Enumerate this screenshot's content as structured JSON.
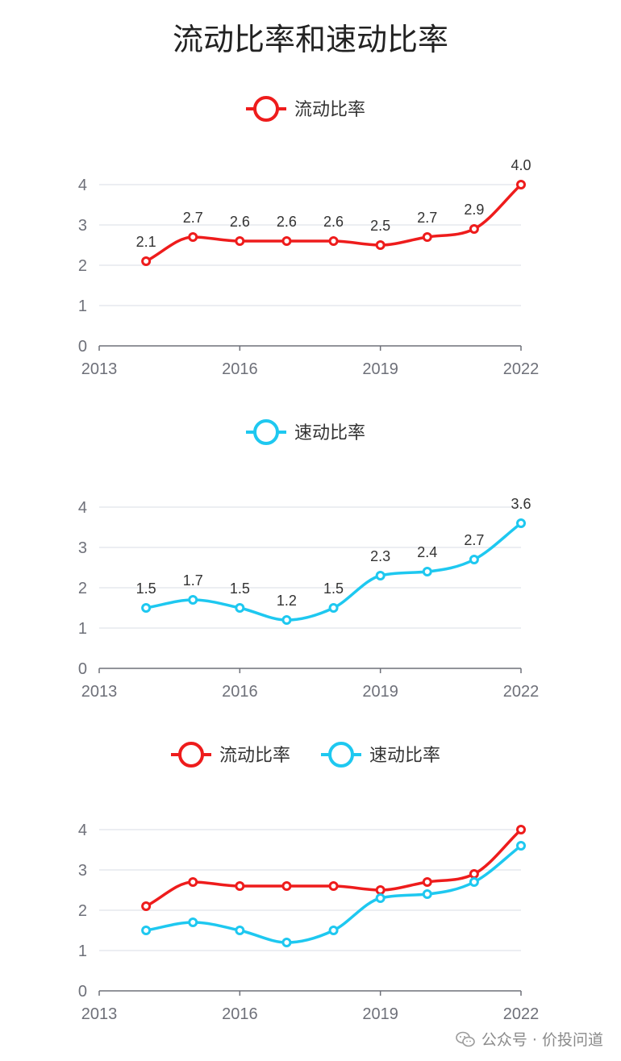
{
  "title": "流动比率和速动比率",
  "watermark": "公众号 · 价投问道",
  "colors": {
    "current": "#ee1c1c",
    "quick": "#1ec8f0",
    "grid": "#e0e3ea",
    "axis": "#6e7079"
  },
  "chart_data": [
    {
      "type": "line",
      "legend": [
        "流动比率"
      ],
      "x_ticks": [
        "2013",
        "2016",
        "2019",
        "2022"
      ],
      "y_ticks": [
        "0",
        "1",
        "2",
        "3",
        "4"
      ],
      "xlim": [
        2013,
        2022
      ],
      "ylim": [
        0,
        4
      ],
      "x": [
        2014,
        2015,
        2016,
        2017,
        2018,
        2019,
        2020,
        2021,
        2022
      ],
      "series": [
        {
          "name": "流动比率",
          "color": "#ee1c1c",
          "values": [
            2.1,
            2.7,
            2.6,
            2.6,
            2.6,
            2.5,
            2.7,
            2.9,
            4.0
          ],
          "labels": [
            "2.1",
            "2.7",
            "2.6",
            "2.6",
            "2.6",
            "2.5",
            "2.7",
            "2.9",
            "4.0"
          ]
        }
      ]
    },
    {
      "type": "line",
      "legend": [
        "速动比率"
      ],
      "x_ticks": [
        "2013",
        "2016",
        "2019",
        "2022"
      ],
      "y_ticks": [
        "0",
        "1",
        "2",
        "3",
        "4"
      ],
      "xlim": [
        2013,
        2022
      ],
      "ylim": [
        0,
        4
      ],
      "x": [
        2014,
        2015,
        2016,
        2017,
        2018,
        2019,
        2020,
        2021,
        2022
      ],
      "series": [
        {
          "name": "速动比率",
          "color": "#1ec8f0",
          "values": [
            1.5,
            1.7,
            1.5,
            1.2,
            1.5,
            2.3,
            2.4,
            2.7,
            3.6
          ],
          "labels": [
            "1.5",
            "1.7",
            "1.5",
            "1.2",
            "1.5",
            "2.3",
            "2.4",
            "2.7",
            "3.6"
          ]
        }
      ]
    },
    {
      "type": "line",
      "legend": [
        "流动比率",
        "速动比率"
      ],
      "x_ticks": [
        "2013",
        "2016",
        "2019",
        "2022"
      ],
      "y_ticks": [
        "0",
        "1",
        "2",
        "3",
        "4"
      ],
      "xlim": [
        2013,
        2022
      ],
      "ylim": [
        0,
        4
      ],
      "x": [
        2014,
        2015,
        2016,
        2017,
        2018,
        2019,
        2020,
        2021,
        2022
      ],
      "series": [
        {
          "name": "流动比率",
          "color": "#ee1c1c",
          "values": [
            2.1,
            2.7,
            2.6,
            2.6,
            2.6,
            2.5,
            2.7,
            2.9,
            4.0
          ]
        },
        {
          "name": "速动比率",
          "color": "#1ec8f0",
          "values": [
            1.5,
            1.7,
            1.5,
            1.2,
            1.5,
            2.3,
            2.4,
            2.7,
            3.6
          ]
        }
      ]
    }
  ]
}
